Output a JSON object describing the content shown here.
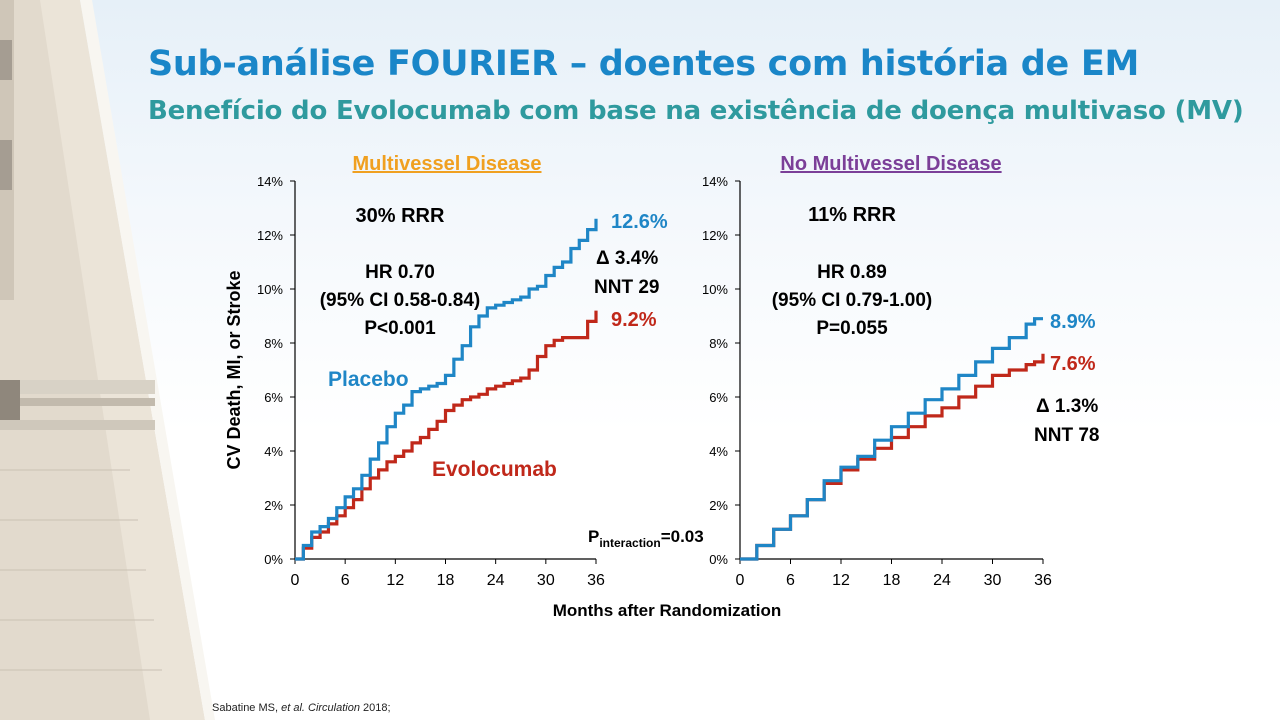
{
  "header": {
    "title": "Sub-análise FOURIER – doentes com história de EM",
    "subtitle": "Benefício do Evolocumab com base na existência de doença multivaso (MV)"
  },
  "citation": {
    "authors": "Sabatine MS, ",
    "etal": "et al.",
    "journal": " Circulation",
    "year": " 2018;"
  },
  "colors": {
    "placebo": "#1f86c6",
    "evolocumab": "#c0281a",
    "multivessel_title": "#f0a020",
    "no_multivessel_title": "#7b3f98"
  },
  "chart_data": [
    {
      "type": "line",
      "panel_title": "Multivessel Disease",
      "xlabel": "Months after Randomization",
      "ylabel": "CV Death, MI, or Stroke",
      "xlim": [
        0,
        36
      ],
      "ylim": [
        0,
        14
      ],
      "xticks": [
        "0",
        "6",
        "12",
        "18",
        "24",
        "30",
        "36"
      ],
      "yticks": [
        "0%",
        "2%",
        "4%",
        "6%",
        "8%",
        "10%",
        "12%",
        "14%"
      ],
      "series": [
        {
          "name": "Placebo",
          "x": [
            0,
            1,
            2,
            3,
            4,
            5,
            6,
            7,
            8,
            9,
            10,
            11,
            12,
            13,
            14,
            15,
            16,
            17,
            18,
            19,
            20,
            21,
            22,
            23,
            24,
            25,
            26,
            27,
            28,
            29,
            30,
            31,
            32,
            33,
            34,
            35,
            36
          ],
          "y": [
            0,
            0.5,
            1.0,
            1.2,
            1.5,
            1.9,
            2.3,
            2.6,
            3.1,
            3.7,
            4.3,
            4.9,
            5.4,
            5.7,
            6.2,
            6.3,
            6.4,
            6.5,
            6.8,
            7.4,
            7.9,
            8.6,
            9.0,
            9.3,
            9.4,
            9.5,
            9.6,
            9.7,
            10.0,
            10.1,
            10.5,
            10.8,
            11.0,
            11.5,
            11.8,
            12.2,
            12.6
          ]
        },
        {
          "name": "Evolocumab",
          "x": [
            0,
            1,
            2,
            3,
            4,
            5,
            6,
            7,
            8,
            9,
            10,
            11,
            12,
            13,
            14,
            15,
            16,
            17,
            18,
            19,
            20,
            21,
            22,
            23,
            24,
            25,
            26,
            27,
            28,
            29,
            30,
            31,
            32,
            33,
            34,
            35,
            36
          ],
          "y": [
            0,
            0.4,
            0.8,
            1.0,
            1.3,
            1.6,
            1.9,
            2.2,
            2.6,
            3.0,
            3.3,
            3.6,
            3.8,
            4.0,
            4.3,
            4.5,
            4.8,
            5.1,
            5.5,
            5.7,
            5.9,
            6.0,
            6.1,
            6.3,
            6.4,
            6.5,
            6.6,
            6.7,
            7.0,
            7.5,
            7.9,
            8.1,
            8.2,
            8.2,
            8.2,
            8.8,
            9.2
          ]
        }
      ],
      "annotations": {
        "rrr": "30% RRR",
        "hr": "HR 0.70",
        "ci": "(95% CI 0.58-0.84)",
        "p": "P<0.001",
        "placebo_end": "12.6%",
        "evolocumab_end": "9.2%",
        "delta": "Δ 3.4%",
        "nnt": "NNT 29",
        "placebo_label": "Placebo",
        "evolocumab_label": "Evolocumab",
        "p_interaction_main": "P",
        "p_interaction_sub": "interaction",
        "p_interaction_value": "=0.03"
      }
    },
    {
      "type": "line",
      "panel_title": "No Multivessel Disease",
      "xlabel": "Months after Randomization",
      "ylabel": "CV Death, MI, or Stroke",
      "xlim": [
        0,
        36
      ],
      "ylim": [
        0,
        14
      ],
      "xticks": [
        "0",
        "6",
        "12",
        "18",
        "24",
        "30",
        "36"
      ],
      "yticks": [
        "0%",
        "2%",
        "4%",
        "6%",
        "8%",
        "10%",
        "12%",
        "14%"
      ],
      "series": [
        {
          "name": "Placebo",
          "x": [
            0,
            2,
            4,
            6,
            8,
            10,
            12,
            14,
            16,
            18,
            20,
            22,
            24,
            26,
            28,
            30,
            32,
            34,
            35,
            36
          ],
          "y": [
            0,
            0.5,
            1.1,
            1.6,
            2.2,
            2.9,
            3.4,
            3.8,
            4.4,
            4.9,
            5.4,
            5.9,
            6.3,
            6.8,
            7.3,
            7.8,
            8.2,
            8.7,
            8.9,
            8.9
          ]
        },
        {
          "name": "Evolocumab",
          "x": [
            0,
            2,
            4,
            6,
            8,
            10,
            12,
            14,
            16,
            18,
            20,
            22,
            24,
            26,
            28,
            30,
            32,
            34,
            35,
            36
          ],
          "y": [
            0,
            0.5,
            1.1,
            1.6,
            2.2,
            2.8,
            3.3,
            3.7,
            4.1,
            4.5,
            4.9,
            5.3,
            5.6,
            6.0,
            6.4,
            6.8,
            7.0,
            7.2,
            7.3,
            7.6
          ]
        }
      ],
      "annotations": {
        "rrr": "11% RRR",
        "hr": "HR 0.89",
        "ci": "(95% CI 0.79-1.00)",
        "p": "P=0.055",
        "placebo_end": "8.9%",
        "evolocumab_end": "7.6%",
        "delta": "Δ 1.3%",
        "nnt": "NNT 78"
      }
    }
  ]
}
